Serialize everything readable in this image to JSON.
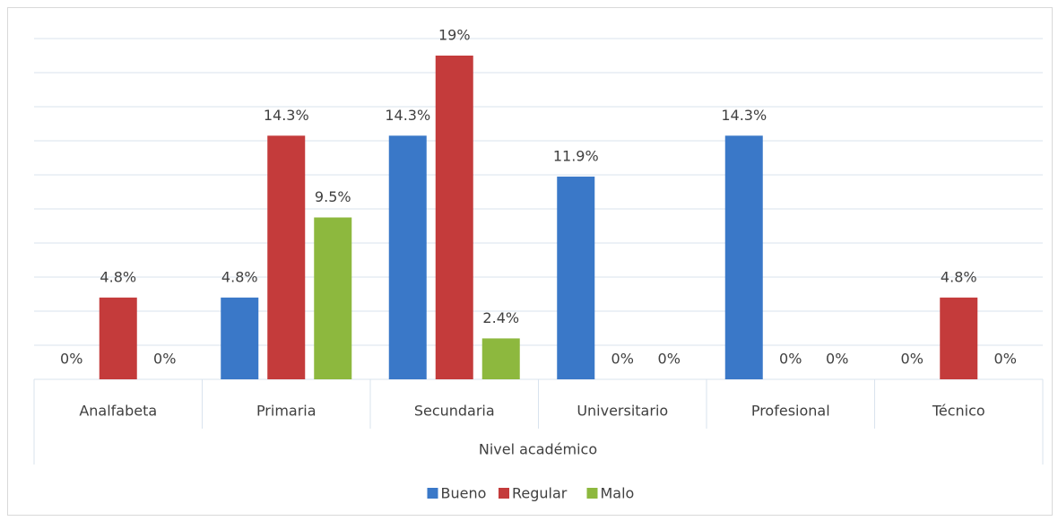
{
  "chart_data": {
    "type": "bar",
    "categories": [
      "Analfabeta",
      "Primaria",
      "Secundaria",
      "Universitario",
      "Profesional",
      "Técnico"
    ],
    "xlabel": "Nivel académico",
    "series": [
      {
        "name": "Bueno",
        "color": "#3a78c8",
        "values": [
          0,
          4.8,
          14.3,
          11.9,
          14.3,
          0
        ],
        "value_labels": [
          "0%",
          "4.8%",
          "14.3%",
          "11.9%",
          "14.3%",
          "0%"
        ]
      },
      {
        "name": "Regular",
        "color": "#c43b3b",
        "values": [
          4.8,
          14.3,
          19,
          0,
          0,
          4.8
        ],
        "value_labels": [
          "4.8%",
          "14.3%",
          "19%",
          "0%",
          "0%",
          "4.8%"
        ]
      },
      {
        "name": "Malo",
        "color": "#8db83e",
        "values": [
          0,
          9.5,
          2.4,
          0,
          0,
          0
        ],
        "value_labels": [
          "0%",
          "9.5%",
          "2.4%",
          "0%",
          "0%",
          "0%"
        ]
      }
    ],
    "ylim": [
      0,
      20
    ],
    "yticks": [
      0,
      2,
      4,
      6,
      8,
      10,
      12,
      14,
      16,
      18,
      20
    ],
    "grid": true,
    "legend": "bottom"
  }
}
